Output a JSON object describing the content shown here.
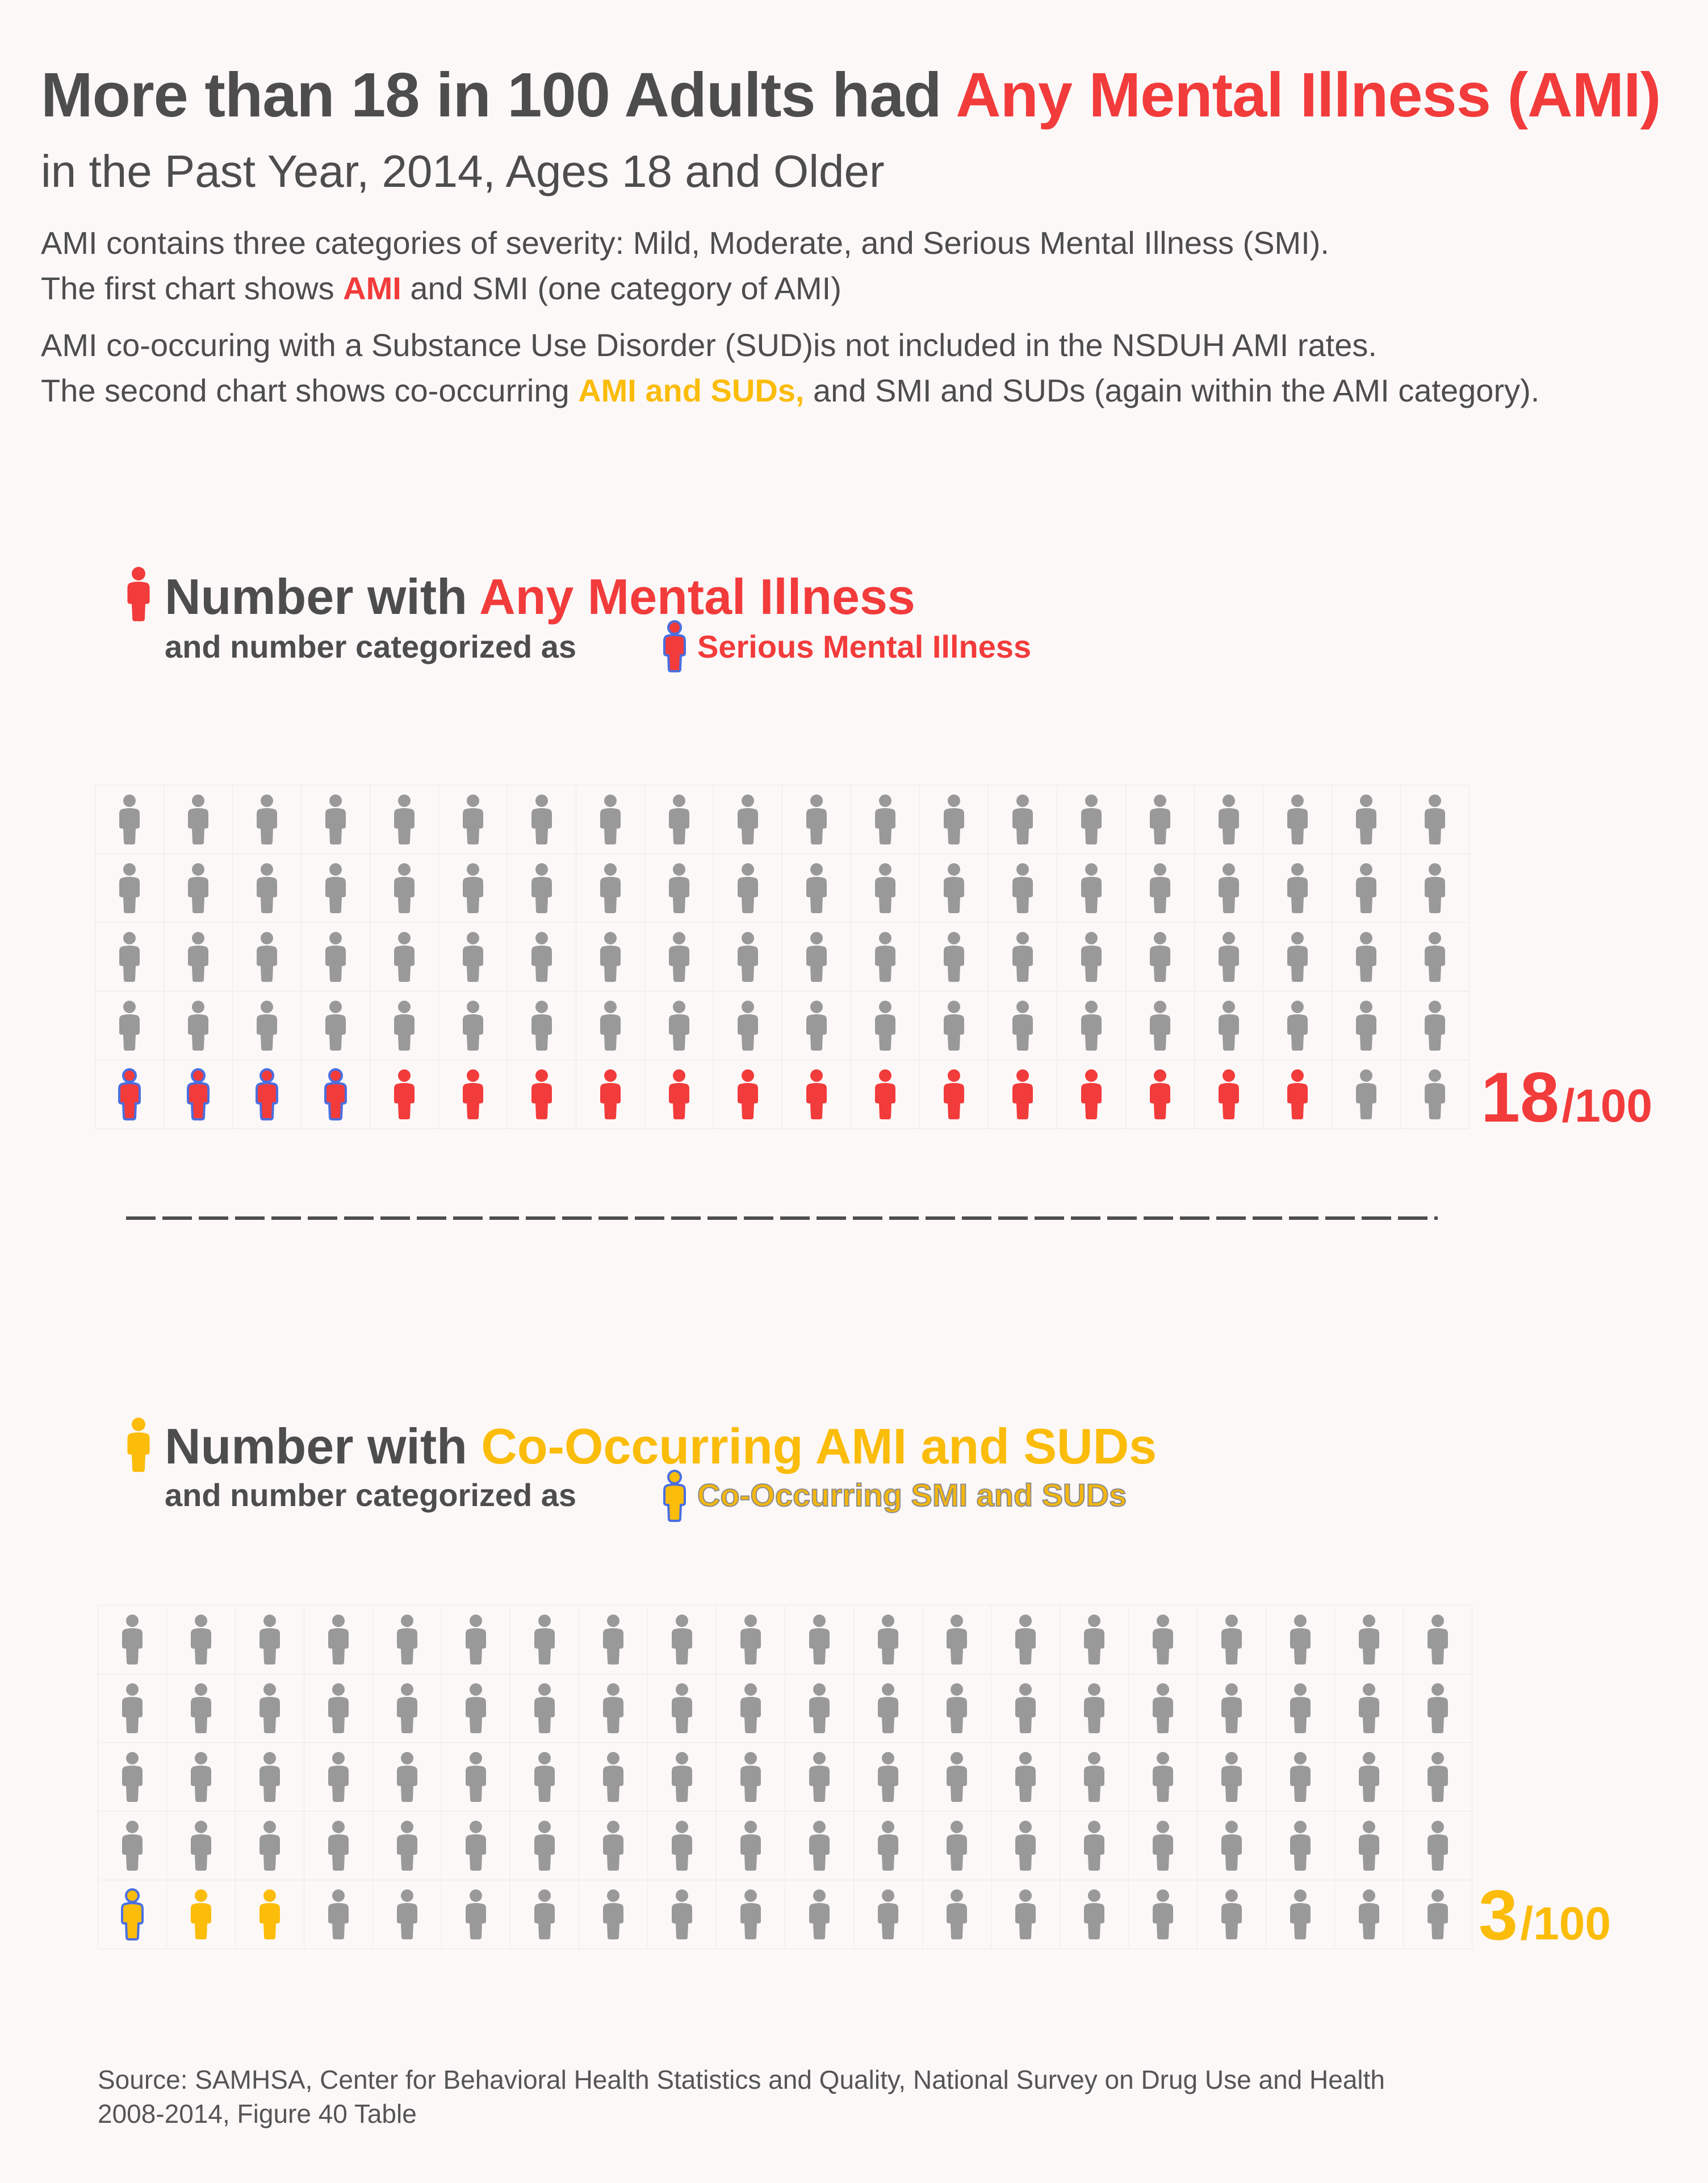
{
  "header": {
    "title_prefix": "More than 18 in 100 Adults had ",
    "title_highlight": "Any Mental Illness (AMI)",
    "subtitle": "in the Past Year, 2014, Ages 18 and Older",
    "intro_line1": "AMI contains three categories of severity: Mild, Moderate, and Serious Mental Illness (SMI).",
    "intro_line2_prefix": "The first chart shows ",
    "intro_line2_highlight": "AMI",
    "intro_line2_suffix": " and SMI (one category of AMI)",
    "intro_line3": "AMI co-occuring with a Substance Use Disorder (SUD)is not included in the NSDUH AMI rates.",
    "intro_line4_prefix": "The second chart shows co-occurring ",
    "intro_line4_highlight": "AMI and SUDs,",
    "intro_line4_suffix": " and SMI and SUDs (again within the AMI category)."
  },
  "colors": {
    "gray": "#999999",
    "red": "#f23b3b",
    "yellow": "#fbbc0a",
    "blue_outline": "#4a6fe0",
    "text": "#4d4d4d",
    "background": "#fcf8f8"
  },
  "chart_data": [
    {
      "type": "pictogram",
      "title_prefix": "Number with ",
      "title_highlight": "Any Mental Illness",
      "subtitle_prefix": "and number categorized as ",
      "subtitle_highlight": "Serious Mental Illness",
      "total": 100,
      "rows": 5,
      "cols": 20,
      "highlighted": 18,
      "subcategory": 4,
      "count_label": "18",
      "denominator_label": "/100",
      "icon": "person-icon",
      "base_color": "#999999",
      "highlight_color": "#f23b3b",
      "subcategory_outline": "#4a6fe0"
    },
    {
      "type": "pictogram",
      "title_prefix": "Number with ",
      "title_highlight": "Co-Occurring AMI and SUDs",
      "subtitle_prefix": "and number categorized as ",
      "subtitle_highlight": "Co-Occurring SMI and SUDs",
      "total": 100,
      "rows": 5,
      "cols": 20,
      "highlighted": 3,
      "subcategory": 1,
      "count_label": "3",
      "denominator_label": "/100",
      "icon": "person-icon",
      "base_color": "#999999",
      "highlight_color": "#fbbc0a",
      "subcategory_outline": "#4a6fe0"
    }
  ],
  "footer": {
    "source_line1": "Source: SAMHSA, Center for Behavioral Health Statistics and Quality, National Survey on Drug Use and Health",
    "source_line2": "2008-2014,  Figure 40 Table"
  }
}
